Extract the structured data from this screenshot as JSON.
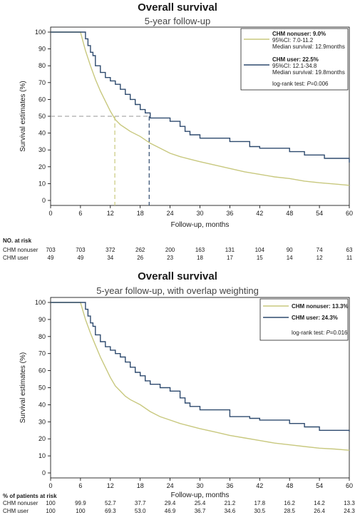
{
  "colors": {
    "nonuser": "#c8c87e",
    "user": "#2e4a6e",
    "ref": "#aaaaaa"
  },
  "chart_data": [
    {
      "type": "line",
      "title": "Overall survival",
      "subtitle": "5-year follow-up",
      "xlabel": "Follow-up, months",
      "ylabel": "Survival estimates (%)",
      "xlim": [
        0,
        60
      ],
      "ylim": [
        0,
        100
      ],
      "xticks": [
        0,
        6,
        12,
        18,
        24,
        30,
        36,
        42,
        48,
        54,
        60
      ],
      "yticks": [
        0,
        10,
        20,
        30,
        40,
        50,
        60,
        70,
        80,
        90,
        100
      ],
      "grid": false,
      "legend_position": "top-right",
      "legend": {
        "nonuser": {
          "title": "CHM nonuser: 9.0%",
          "ci": "95%CI: 7.0-11.2",
          "median": "Median survival: 12.9months"
        },
        "user": {
          "title": "CHM user: 22.5%",
          "ci": "95%CI: 12.1-34.8",
          "median": "Median survival: 19.8months"
        },
        "test_prefix": "log-rank test: ",
        "test_p": "P",
        "test_value": "=0.006"
      },
      "median_lines": {
        "y": 50,
        "nonuser_x": 12.9,
        "user_x": 19.8
      },
      "series": [
        {
          "name": "CHM nonuser",
          "x": [
            0,
            6,
            7,
            8,
            9,
            10,
            11,
            12,
            13,
            14,
            15,
            16,
            18,
            20,
            22,
            24,
            26,
            28,
            30,
            33,
            36,
            39,
            42,
            45,
            48,
            51,
            54,
            57,
            60
          ],
          "y": [
            100,
            100,
            89,
            80,
            72,
            65,
            59,
            53,
            48,
            45,
            43,
            41,
            38,
            34,
            31,
            28,
            26,
            24.5,
            23,
            21,
            19,
            17,
            15.5,
            14,
            13,
            11.5,
            10.5,
            9.8,
            9
          ]
        },
        {
          "name": "CHM user",
          "x": [
            0,
            6.5,
            7,
            7.5,
            8,
            8.5,
            9,
            10,
            11,
            12,
            13,
            14,
            15,
            16,
            17,
            18,
            19,
            20,
            22,
            24,
            26,
            27,
            28,
            30,
            36,
            40,
            42,
            48,
            51,
            55,
            60
          ],
          "y": [
            100,
            100,
            96,
            92,
            88,
            86,
            80,
            76,
            73,
            71,
            69,
            66,
            63,
            60,
            57,
            54,
            52,
            49,
            49,
            47,
            44,
            41,
            39,
            37,
            35,
            32,
            31,
            29,
            27,
            25,
            22.5
          ]
        }
      ],
      "risk_table": {
        "header": "NO. at risk",
        "rows": [
          {
            "label": "CHM nonuser",
            "values": [
              "703",
              "703",
              "372",
              "262",
              "200",
              "163",
              "131",
              "104",
              "90",
              "74",
              "63"
            ]
          },
          {
            "label": "CHM user",
            "values": [
              "49",
              "49",
              "34",
              "26",
              "23",
              "18",
              "17",
              "15",
              "14",
              "12",
              "11"
            ]
          }
        ]
      }
    },
    {
      "type": "line",
      "title": "Overall survival",
      "subtitle": "5-year follow-up, with overlap weighting",
      "xlabel": "Follow-up, months",
      "ylabel": "Survival estimates (%)",
      "xlim": [
        0,
        60
      ],
      "ylim": [
        0,
        100
      ],
      "xticks": [
        0,
        6,
        12,
        18,
        24,
        30,
        36,
        42,
        48,
        54,
        60
      ],
      "yticks": [
        0,
        10,
        20,
        30,
        40,
        50,
        60,
        70,
        80,
        90,
        100
      ],
      "grid": false,
      "legend_position": "top-right",
      "legend": {
        "nonuser": {
          "title": "CHM nonuser: 13.3%"
        },
        "user": {
          "title": "CHM user: 24.3%"
        },
        "test_prefix": "log-rank test: ",
        "test_p": "P",
        "test_value": "=0.016"
      },
      "series": [
        {
          "name": "CHM nonuser",
          "x": [
            0,
            6,
            7,
            8,
            9,
            10,
            11,
            12,
            13,
            14,
            15,
            16,
            18,
            20,
            22,
            24,
            26,
            28,
            30,
            33,
            36,
            39,
            42,
            45,
            48,
            51,
            54,
            57,
            60
          ],
          "y": [
            100,
            100,
            90,
            82,
            75,
            68,
            62,
            56,
            51,
            48,
            45,
            43,
            40,
            36,
            33,
            31,
            29,
            27.5,
            26,
            24,
            22,
            20.5,
            19,
            17.5,
            16.5,
            15.5,
            14.5,
            14,
            13.3
          ]
        },
        {
          "name": "CHM user",
          "x": [
            0,
            6.5,
            7,
            7.5,
            8,
            8.5,
            9,
            10,
            11,
            12,
            13,
            14,
            15,
            16,
            17,
            18,
            19,
            20,
            22,
            24,
            26,
            27,
            28,
            30,
            36,
            40,
            42,
            48,
            51,
            54,
            60
          ],
          "y": [
            100,
            100,
            96,
            92,
            88,
            86,
            81,
            77,
            74,
            72,
            70,
            68,
            65,
            62,
            59,
            57,
            54,
            52,
            50,
            48,
            44,
            41,
            39,
            37,
            33,
            32,
            31,
            29,
            27,
            25,
            24.3
          ]
        }
      ],
      "risk_table": {
        "header": "% of patients at risk",
        "rows": [
          {
            "label": "CHM nonuser",
            "values": [
              "100",
              "99.9",
              "52.7",
              "37.7",
              "29.4",
              "25.4",
              "21.2",
              "17.8",
              "16.2",
              "14.2",
              "13.3"
            ]
          },
          {
            "label": "CHM user",
            "values": [
              "100",
              "100",
              "69.3",
              "53.0",
              "46.9",
              "36.7",
              "34.6",
              "30.5",
              "28.5",
              "26.4",
              "24.3"
            ]
          }
        ]
      }
    }
  ]
}
